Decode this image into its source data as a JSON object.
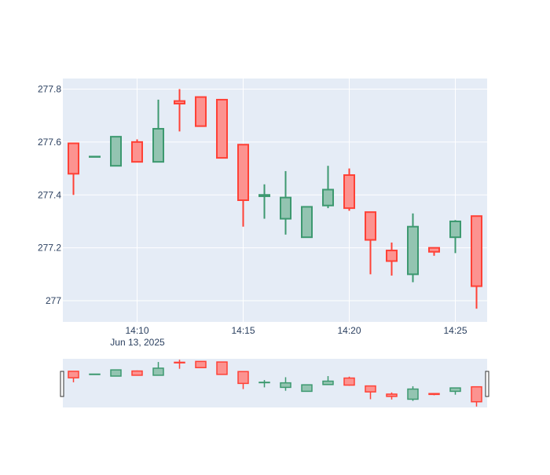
{
  "chart_data": {
    "type": "candlestick",
    "title": "",
    "xlabel": "",
    "ylabel": "",
    "date_label": "Jun 13, 2025",
    "x_tick_labels": [
      "14:10",
      "14:15",
      "14:20",
      "14:25"
    ],
    "x_tick_times": [
      "14:10",
      "14:15",
      "14:20",
      "14:25"
    ],
    "y_tick_labels": [
      "277",
      "277.2",
      "277.4",
      "277.6",
      "277.8"
    ],
    "y_ticks": [
      277.0,
      277.2,
      277.4,
      277.6,
      277.8
    ],
    "ylim": [
      276.92,
      277.84
    ],
    "xlim": [
      "14:06:30",
      "14:26:30"
    ],
    "grid": true,
    "rangeslider": true,
    "increasing_color": "#3d9970",
    "decreasing_color": "#ff4136",
    "increasing_fill": "#93c4b1",
    "decreasing_fill": "#fc9390",
    "plot_bg": "#e5ecf6",
    "candles": [
      {
        "time": "14:07",
        "open": 277.595,
        "high": 277.595,
        "low": 277.4,
        "close": 277.48
      },
      {
        "time": "14:08",
        "open": 277.545,
        "high": 277.545,
        "low": 277.545,
        "close": 277.545
      },
      {
        "time": "14:09",
        "open": 277.51,
        "high": 277.62,
        "low": 277.51,
        "close": 277.62
      },
      {
        "time": "14:10",
        "open": 277.6,
        "high": 277.61,
        "low": 277.525,
        "close": 277.525
      },
      {
        "time": "14:11",
        "open": 277.525,
        "high": 277.76,
        "low": 277.525,
        "close": 277.65
      },
      {
        "time": "14:12",
        "open": 277.755,
        "high": 277.8,
        "low": 277.64,
        "close": 277.745
      },
      {
        "time": "14:13",
        "open": 277.77,
        "high": 277.77,
        "low": 277.66,
        "close": 277.66
      },
      {
        "time": "14:14",
        "open": 277.76,
        "high": 277.76,
        "low": 277.54,
        "close": 277.54
      },
      {
        "time": "14:15",
        "open": 277.59,
        "high": 277.59,
        "low": 277.28,
        "close": 277.38
      },
      {
        "time": "14:16",
        "open": 277.395,
        "high": 277.44,
        "low": 277.31,
        "close": 277.4
      },
      {
        "time": "14:17",
        "open": 277.31,
        "high": 277.49,
        "low": 277.25,
        "close": 277.39
      },
      {
        "time": "14:18",
        "open": 277.24,
        "high": 277.355,
        "low": 277.24,
        "close": 277.355
      },
      {
        "time": "14:19",
        "open": 277.36,
        "high": 277.51,
        "low": 277.35,
        "close": 277.42
      },
      {
        "time": "14:20",
        "open": 277.475,
        "high": 277.5,
        "low": 277.34,
        "close": 277.35
      },
      {
        "time": "14:21",
        "open": 277.335,
        "high": 277.335,
        "low": 277.1,
        "close": 277.23
      },
      {
        "time": "14:22",
        "open": 277.19,
        "high": 277.22,
        "low": 277.095,
        "close": 277.15
      },
      {
        "time": "14:23",
        "open": 277.1,
        "high": 277.33,
        "low": 277.07,
        "close": 277.28
      },
      {
        "time": "14:24",
        "open": 277.2,
        "high": 277.2,
        "low": 277.17,
        "close": 277.185
      },
      {
        "time": "14:25",
        "open": 277.24,
        "high": 277.305,
        "low": 277.18,
        "close": 277.3
      },
      {
        "time": "14:26",
        "open": 277.32,
        "high": 277.32,
        "low": 276.97,
        "close": 277.055
      }
    ]
  }
}
